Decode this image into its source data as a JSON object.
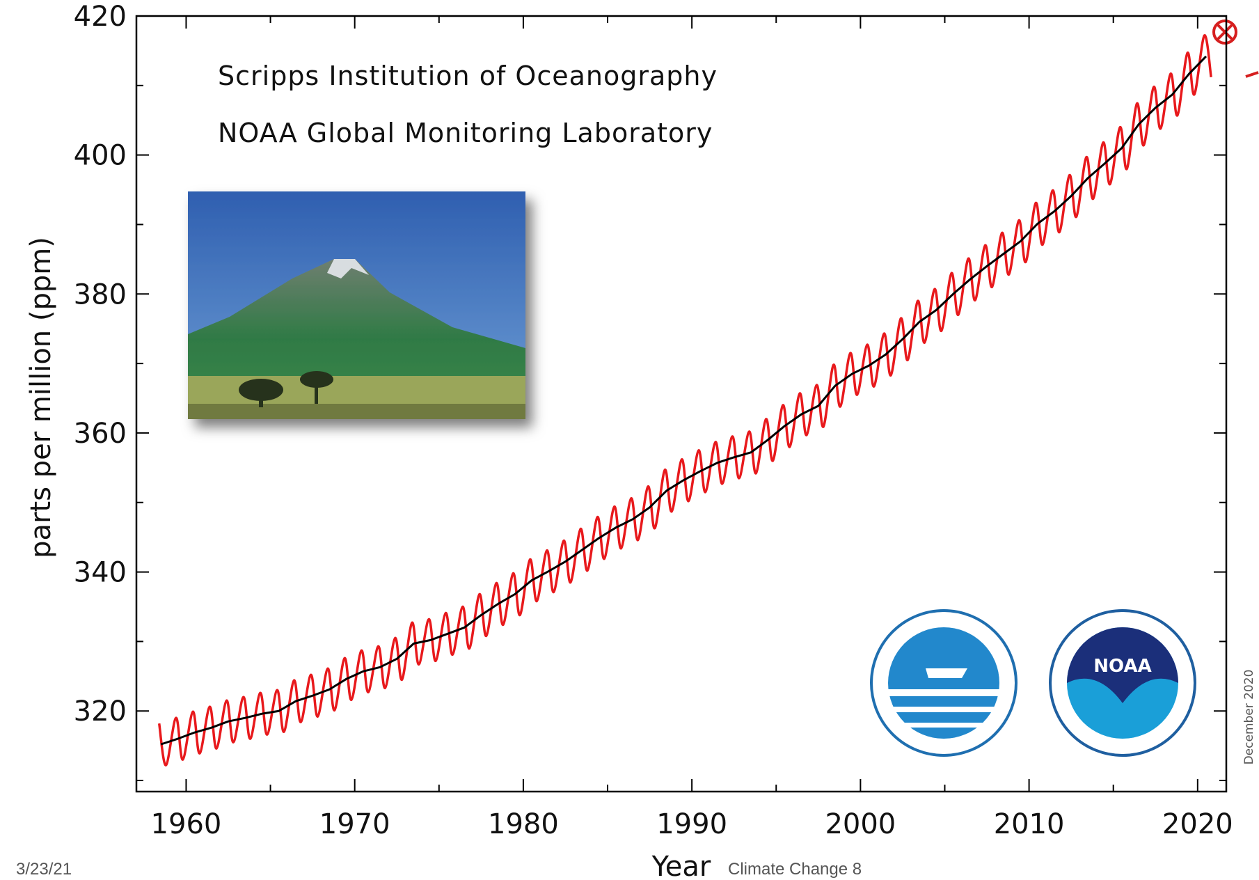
{
  "chart_data": {
    "type": "line",
    "ylabel": "parts per million (ppm)",
    "xlabel": "Year",
    "annotations": [
      "Scripps Institution of Oceanography",
      "NOAA Global Monitoring Laboratory",
      "December 2020"
    ],
    "footer": {
      "date": "3/23/21",
      "text": "Climate Change 8"
    },
    "xlim": [
      1957.05,
      2021.7
    ],
    "ylim": [
      308.4,
      420
    ],
    "xticks": [
      1960,
      1970,
      1980,
      1990,
      2000,
      2010,
      2020
    ],
    "yticks": [
      320,
      340,
      360,
      380,
      400,
      420
    ],
    "xminorticks": [
      1965,
      1975,
      1985,
      1995,
      2005,
      2015
    ],
    "yminorticks": [
      310,
      330,
      350,
      370,
      390,
      410
    ],
    "series": [
      {
        "color": "#e8191c",
        "x": [
          1958.4,
          1958.8,
          1959.4,
          1959.8,
          1960.4,
          1960.8,
          1961.4,
          1961.8,
          1962.4,
          1962.8,
          1963.4,
          1963.8,
          1964.4,
          1964.8,
          1965.4,
          1965.8,
          1966.4,
          1966.8,
          1967.4,
          1967.8,
          1968.4,
          1968.8,
          1969.4,
          1969.8,
          1970.4,
          1970.8,
          1971.4,
          1971.8,
          1972.4,
          1972.8,
          1973.4,
          1973.8,
          1974.4,
          1974.8,
          1975.4,
          1975.8,
          1976.4,
          1976.8,
          1977.4,
          1977.8,
          1978.4,
          1978.8,
          1979.4,
          1979.8,
          1980.4,
          1980.8,
          1981.4,
          1981.8,
          1982.4,
          1982.8,
          1983.4,
          1983.8,
          1984.4,
          1984.8,
          1985.4,
          1985.8,
          1986.4,
          1986.8,
          1987.4,
          1987.8,
          1988.4,
          1988.8,
          1989.4,
          1989.8,
          1990.4,
          1990.8,
          1991.4,
          1991.8,
          1992.4,
          1992.8,
          1993.4,
          1993.8,
          1994.4,
          1994.8,
          1995.4,
          1995.8,
          1996.4,
          1996.8,
          1997.4,
          1997.8,
          1998.4,
          1998.8,
          1999.4,
          1999.8,
          2000.4,
          2000.8,
          2001.4,
          2001.8,
          2002.4,
          2002.8,
          2003.4,
          2003.8,
          2004.4,
          2004.8,
          2005.4,
          2005.8,
          2006.4,
          2006.8,
          2007.4,
          2007.8,
          2008.4,
          2008.8,
          2009.4,
          2009.8,
          2010.4,
          2010.8,
          2011.4,
          2011.8,
          2012.4,
          2012.8,
          2013.4,
          2013.8,
          2014.4,
          2014.8,
          2015.4,
          2015.8,
          2016.4,
          2016.8,
          2017.4,
          2017.8,
          2018.4,
          2018.8,
          2019.4,
          2019.8,
          2020.4,
          2020.8
        ],
        "values": [
          318.2,
          312.2,
          319.0,
          313.0,
          319.9,
          313.9,
          320.6,
          314.6,
          321.5,
          315.5,
          322.0,
          316.0,
          322.6,
          316.6,
          323.0,
          317.0,
          324.4,
          318.4,
          325.2,
          319.2,
          326.1,
          320.1,
          327.6,
          321.6,
          328.7,
          322.7,
          329.3,
          323.3,
          330.5,
          324.5,
          332.7,
          326.7,
          333.2,
          327.2,
          334.1,
          328.1,
          335.0,
          329.0,
          336.8,
          330.8,
          338.4,
          332.4,
          339.8,
          333.8,
          341.8,
          335.8,
          343.1,
          337.1,
          344.5,
          338.5,
          346.2,
          340.2,
          347.9,
          341.9,
          349.4,
          343.4,
          350.6,
          344.6,
          352.3,
          346.3,
          354.7,
          348.7,
          356.2,
          350.2,
          357.5,
          351.5,
          358.7,
          352.7,
          359.5,
          353.5,
          360.2,
          354.2,
          362.0,
          356.0,
          364.0,
          358.0,
          365.7,
          359.7,
          366.9,
          360.9,
          369.8,
          363.8,
          371.5,
          365.5,
          372.7,
          366.7,
          374.3,
          368.3,
          376.5,
          370.5,
          379.0,
          373.0,
          380.7,
          374.7,
          383.0,
          377.0,
          385.1,
          379.1,
          387.0,
          381.0,
          388.8,
          382.8,
          390.6,
          384.6,
          393.1,
          387.1,
          394.9,
          388.9,
          397.1,
          391.1,
          399.7,
          393.7,
          401.8,
          395.8,
          404.0,
          398.0,
          407.4,
          401.4,
          409.8,
          403.8,
          411.7,
          405.7,
          414.7,
          408.7,
          417.2,
          411.2
        ]
      },
      {
        "color": "#000000",
        "x": [
          1958.5,
          1959.5,
          1960.5,
          1961.5,
          1962.5,
          1963.5,
          1964.5,
          1965.5,
          1966.5,
          1967.5,
          1968.5,
          1969.5,
          1970.5,
          1971.5,
          1972.5,
          1973.5,
          1974.5,
          1975.5,
          1976.5,
          1977.5,
          1978.5,
          1979.5,
          1980.5,
          1981.5,
          1982.5,
          1983.5,
          1984.5,
          1985.5,
          1986.5,
          1987.5,
          1988.5,
          1989.5,
          1990.5,
          1991.5,
          1992.5,
          1993.5,
          1994.5,
          1995.5,
          1996.5,
          1997.5,
          1998.5,
          1999.5,
          2000.5,
          2001.5,
          2002.5,
          2003.5,
          2004.5,
          2005.5,
          2006.5,
          2007.5,
          2008.5,
          2009.5,
          2010.5,
          2011.5,
          2012.5,
          2013.5,
          2014.5,
          2015.5,
          2016.5,
          2017.5,
          2018.5,
          2019.5,
          2020.5
        ],
        "values": [
          315.2,
          316.0,
          316.9,
          317.6,
          318.5,
          319.0,
          319.6,
          320.0,
          321.4,
          322.2,
          323.1,
          324.6,
          325.7,
          326.3,
          327.5,
          329.7,
          330.2,
          331.1,
          332.0,
          333.8,
          335.4,
          336.8,
          338.8,
          340.1,
          341.5,
          343.2,
          344.9,
          346.4,
          347.6,
          349.3,
          351.7,
          353.2,
          354.5,
          355.7,
          356.5,
          357.2,
          359.0,
          361.0,
          362.7,
          363.9,
          366.8,
          368.5,
          369.7,
          371.3,
          373.5,
          376.0,
          377.7,
          380.0,
          382.1,
          384.0,
          385.8,
          387.6,
          390.1,
          391.9,
          394.1,
          396.7,
          398.8,
          401.0,
          404.4,
          406.8,
          408.7,
          411.7,
          414.2
        ]
      }
    ]
  }
}
